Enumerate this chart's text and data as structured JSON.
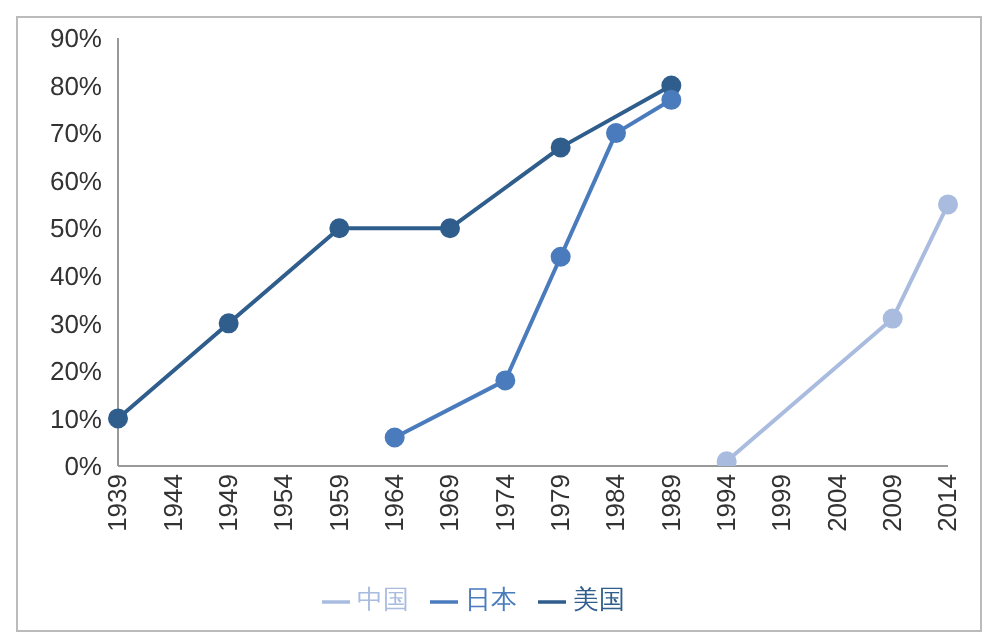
{
  "chart_data": {
    "type": "line",
    "categories": [
      "1939",
      "1944",
      "1949",
      "1954",
      "1959",
      "1964",
      "1969",
      "1974",
      "1979",
      "1984",
      "1989",
      "1994",
      "1999",
      "2004",
      "2009",
      "2014"
    ],
    "series": [
      {
        "name": "美国",
        "color": "#2f5d8c",
        "values": [
          10,
          null,
          30,
          null,
          50,
          null,
          50,
          null,
          67,
          null,
          80,
          null,
          null,
          null,
          null,
          null
        ]
      },
      {
        "name": "日本",
        "color": "#4a7bbd",
        "values": [
          null,
          null,
          null,
          null,
          null,
          6,
          null,
          18,
          44,
          70,
          77,
          null,
          null,
          null,
          null,
          null
        ]
      },
      {
        "name": "中国",
        "color": "#a9bcdf",
        "values": [
          null,
          null,
          null,
          null,
          null,
          null,
          null,
          null,
          null,
          null,
          null,
          1,
          null,
          null,
          31,
          55
        ]
      }
    ],
    "ylim": [
      0,
      90
    ],
    "yticks": [
      {
        "value": 0,
        "label": "0%"
      },
      {
        "value": 10,
        "label": "10%"
      },
      {
        "value": 20,
        "label": "20%"
      },
      {
        "value": 30,
        "label": "30%"
      },
      {
        "value": 40,
        "label": "40%"
      },
      {
        "value": 50,
        "label": "50%"
      },
      {
        "value": 60,
        "label": "60%"
      },
      {
        "value": 70,
        "label": "70%"
      },
      {
        "value": 80,
        "label": "80%"
      },
      {
        "value": 90,
        "label": "90%"
      }
    ],
    "grid": false,
    "legend": "bottom",
    "marker": "circle",
    "line_style": "solid"
  }
}
